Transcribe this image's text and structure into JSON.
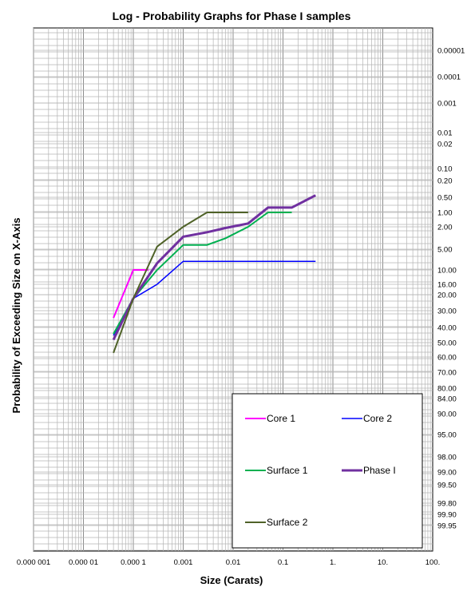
{
  "chart_data": {
    "type": "line",
    "title": "Log - Probability  Graphs for Phase I samples",
    "xlabel": "Size (Carats)",
    "ylabel": "Probability  of Exceeding Size on X-Axis",
    "x_scale": "log",
    "y_scale": "probability",
    "xlim": [
      1e-06,
      100
    ],
    "ylim": [
      1e-06,
      99.99
    ],
    "y_direction": "increasing downward",
    "grid": true,
    "legend_position": "bottom-right",
    "x_ticks": [
      {
        "value": 1e-06,
        "label": "0.000 001"
      },
      {
        "value": 1e-05,
        "label": "0.000 01"
      },
      {
        "value": 0.0001,
        "label": "0.000 1"
      },
      {
        "value": 0.001,
        "label": "0.001"
      },
      {
        "value": 0.01,
        "label": "0.01"
      },
      {
        "value": 0.1,
        "label": "0.1"
      },
      {
        "value": 1,
        "label": "1."
      },
      {
        "value": 10,
        "label": "10."
      },
      {
        "value": 100,
        "label": "100."
      }
    ],
    "y_ticks": [
      {
        "value": 1e-05,
        "label": "0.00001"
      },
      {
        "value": 0.0001,
        "label": "0.0001"
      },
      {
        "value": 0.001,
        "label": "0.001"
      },
      {
        "value": 0.01,
        "label": "0.01"
      },
      {
        "value": 0.02,
        "label": "0.02"
      },
      {
        "value": 0.1,
        "label": "0.10"
      },
      {
        "value": 0.2,
        "label": "0.20"
      },
      {
        "value": 0.5,
        "label": "0.50"
      },
      {
        "value": 1,
        "label": "1.00"
      },
      {
        "value": 2,
        "label": "2.00"
      },
      {
        "value": 5,
        "label": "5.00"
      },
      {
        "value": 10,
        "label": "10.00"
      },
      {
        "value": 16,
        "label": "16.00"
      },
      {
        "value": 20,
        "label": "20.00"
      },
      {
        "value": 30,
        "label": "30.00"
      },
      {
        "value": 40,
        "label": "40.00"
      },
      {
        "value": 50,
        "label": "50.00"
      },
      {
        "value": 60,
        "label": "60.00"
      },
      {
        "value": 70,
        "label": "70.00"
      },
      {
        "value": 80,
        "label": "80.00"
      },
      {
        "value": 84,
        "label": "84.00"
      },
      {
        "value": 90,
        "label": "90.00"
      },
      {
        "value": 95,
        "label": "95.00"
      },
      {
        "value": 98,
        "label": "98.00"
      },
      {
        "value": 99,
        "label": "99.00"
      },
      {
        "value": 99.5,
        "label": "99.50"
      },
      {
        "value": 99.8,
        "label": "99.80"
      },
      {
        "value": 99.9,
        "label": "99.90"
      },
      {
        "value": 99.95,
        "label": "99.95"
      }
    ],
    "series": [
      {
        "name": "Core 1",
        "color": "#ff00ff",
        "width": 2,
        "points": [
          [
            4e-05,
            34
          ],
          [
            0.0001,
            10
          ],
          [
            0.0002,
            10
          ]
        ]
      },
      {
        "name": "Core 2",
        "color": "#0000ff",
        "width": 1.5,
        "points": [
          [
            4e-05,
            45
          ],
          [
            0.0001,
            22
          ],
          [
            0.0003,
            16
          ],
          [
            0.001,
            7.5
          ],
          [
            0.01,
            7.5
          ],
          [
            0.1,
            7.5
          ],
          [
            0.45,
            7.5
          ]
        ]
      },
      {
        "name": "Surface 1",
        "color": "#00b050",
        "width": 2,
        "points": [
          [
            4e-05,
            44
          ],
          [
            0.0001,
            22
          ],
          [
            0.0003,
            10
          ],
          [
            0.001,
            4.2
          ],
          [
            0.003,
            4.2
          ],
          [
            0.007,
            3.2
          ],
          [
            0.02,
            2
          ],
          [
            0.05,
            1
          ],
          [
            0.15,
            1
          ]
        ]
      },
      {
        "name": "Phase I",
        "color": "#7030a0",
        "width": 3,
        "points": [
          [
            4e-05,
            48
          ],
          [
            0.0001,
            22
          ],
          [
            0.0003,
            8
          ],
          [
            0.001,
            3
          ],
          [
            0.003,
            2.5
          ],
          [
            0.007,
            2.1
          ],
          [
            0.02,
            1.7
          ],
          [
            0.05,
            0.8
          ],
          [
            0.15,
            0.8
          ],
          [
            0.45,
            0.45
          ]
        ]
      },
      {
        "name": "Surface 2",
        "color": "#4f6228",
        "width": 2,
        "points": [
          [
            4e-05,
            57
          ],
          [
            0.0001,
            22
          ],
          [
            0.0003,
            4.5
          ],
          [
            0.001,
            2
          ],
          [
            0.003,
            1
          ],
          [
            0.01,
            1
          ],
          [
            0.02,
            1
          ]
        ]
      }
    ],
    "legend_order": [
      "Core 1",
      "Core 2",
      "Surface 1",
      "Phase I",
      "Surface 2"
    ]
  }
}
